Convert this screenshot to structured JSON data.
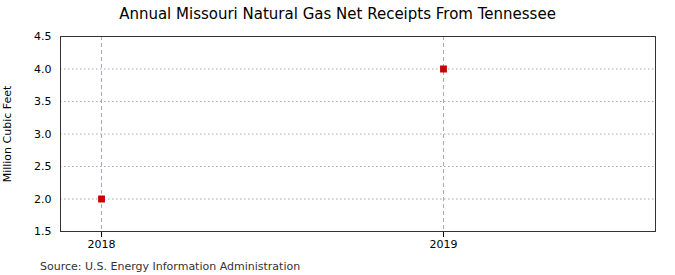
{
  "chart_data": {
    "type": "scatter",
    "title": "Annual Missouri Natural Gas Net Receipts From Tennessee",
    "ylabel": "Million Cubic Feet",
    "source": "Source: U.S. Energy Information Administration",
    "x": [
      2018,
      2019
    ],
    "values": [
      2.0,
      4.0
    ],
    "color": "#cc0000",
    "marker": "square",
    "xlim": [
      2017.88,
      2019.62
    ],
    "xticks": [
      2018,
      2019
    ],
    "ylim": [
      1.5,
      4.5
    ],
    "yticks": [
      1.5,
      {
        "value": 2.0,
        "label": "2.0"
      },
      2.5,
      {
        "value": 3.0,
        "label": "3.0"
      },
      3.5,
      {
        "value": 4.0,
        "label": "4.0"
      },
      4.5
    ],
    "grid": true
  }
}
